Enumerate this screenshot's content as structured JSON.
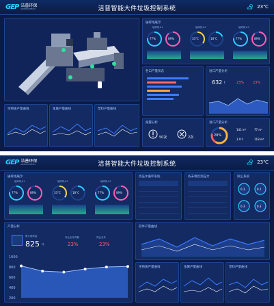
{
  "header": {
    "logo_mark": "GEP",
    "logo_cn": "洁普环保",
    "logo_en": "GEP ECOTECH",
    "title": "洁普智能大件垃圾控制系统",
    "temperature": "23℃",
    "weather_icon": "cloud-sun-icon"
  },
  "screen1": {
    "sensor_card": {
      "title": "破碎线展示",
      "units": [
        {
          "label": "破碎机#1",
          "values": [
            "77%",
            "89%"
          ]
        },
        {
          "label": "破碎机#2",
          "values": [
            "33°C",
            "18°C"
          ]
        },
        {
          "label": "破碎机#3",
          "values": [
            "77%",
            "89%"
          ]
        }
      ]
    },
    "status_card": {
      "title": "各口产量状态"
    },
    "output_card": {
      "title": "进口产量分析",
      "value": "632",
      "unit": "t",
      "up1": "23%",
      "up2": "23%"
    },
    "alarm_card": {
      "title": "报警分析",
      "count1": "50次",
      "count2": "2次"
    },
    "ratio_card": {
      "title": "进口产量分析",
      "percent": "20%",
      "stats": [
        "141 m³",
        "77 m³",
        "3.9 t",
        "118 m³"
      ]
    },
    "curve_cards": [
      {
        "title": "生物质产量曲线"
      },
      {
        "title": "金属产量曲线"
      },
      {
        "title": "塑料产量曲线"
      }
    ]
  },
  "screen2": {
    "sensor_card": {
      "title": "破碎线展示",
      "units": [
        {
          "label": "破碎机#1",
          "values": [
            "77%",
            "89%"
          ]
        },
        {
          "label": "破碎机#2",
          "values": [
            "33°C",
            "18°C"
          ]
        },
        {
          "label": "破碎机#3",
          "values": [
            "77%",
            "89%"
          ]
        }
      ]
    },
    "table1": {
      "title": "高压水循环系统"
    },
    "table2": {
      "title": "各末端检测压力"
    },
    "dust_card": {
      "title": "除尘系统",
      "gauges": [
        "0.3",
        "0.2",
        "0.3",
        "0.3"
      ]
    },
    "production": {
      "title": "产量分析",
      "label_total": "累计破碎量",
      "total": "825",
      "unit": "吨",
      "label_mom": "环比去年同期",
      "mom": "23%",
      "label_yoy": "同比去年",
      "yoy": "23%"
    },
    "soft_curve": {
      "title": "软件产量曲线"
    },
    "curve_cards": [
      {
        "title": "生物质产量曲线"
      },
      {
        "title": "金属产量曲线"
      },
      {
        "title": "塑料产量曲线"
      }
    ]
  },
  "chart_data": {
    "type": "area",
    "title": "",
    "x": [
      "1",
      "2",
      "3",
      "4",
      "5",
      "6"
    ],
    "series": [
      {
        "values": [
          820,
          720,
          700,
          760,
          800,
          810
        ]
      }
    ],
    "ylim": [
      200,
      1000
    ],
    "yticks": [
      "1000",
      "800",
      "600",
      "400",
      "200"
    ]
  }
}
